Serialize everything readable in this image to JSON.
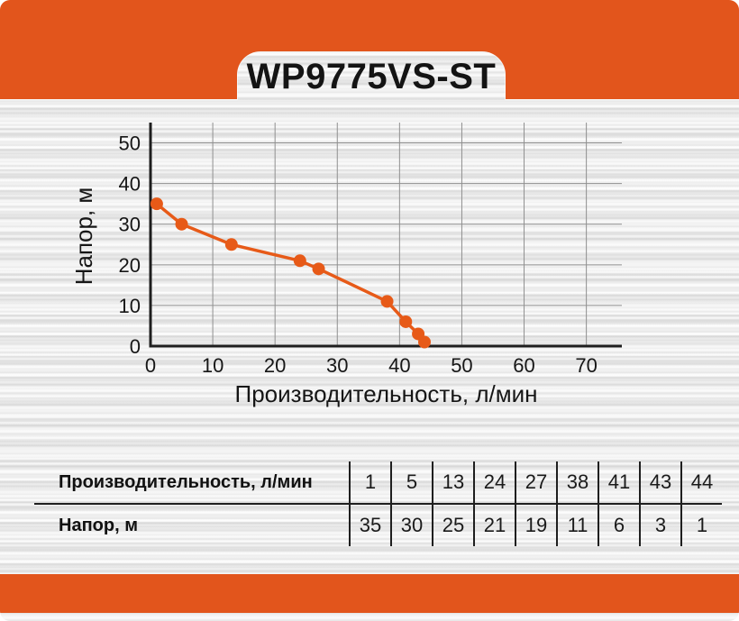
{
  "title": "WP9775VS-ST",
  "colors": {
    "accent_orange": "#E2551C",
    "curve_orange": "#E75A18",
    "axis_dark": "#1E1E1E",
    "grid_gray": "#8F8F8F",
    "text_dark": "#161616"
  },
  "chart_data": {
    "type": "line",
    "title": "",
    "xlabel": "Производительность, л/мин",
    "ylabel": "Напор, м",
    "series": [
      {
        "name": "pump-curve",
        "x": [
          1,
          5,
          13,
          24,
          27,
          38,
          41,
          43,
          44
        ],
        "y": [
          35,
          30,
          25,
          21,
          19,
          11,
          6,
          3,
          1
        ]
      }
    ],
    "xlim": [
      0,
      75.7
    ],
    "ylim": [
      0,
      55
    ],
    "xticks": [
      0,
      10,
      20,
      30,
      40,
      50,
      60,
      70
    ],
    "yticks": [
      0,
      10,
      20,
      30,
      40,
      50
    ],
    "grid": true,
    "legend": false
  },
  "table": {
    "rows": [
      {
        "label": "Производительность, л/мин",
        "values": [
          1,
          5,
          13,
          24,
          27,
          38,
          41,
          43,
          44
        ]
      },
      {
        "label": "Напор, м",
        "values": [
          35,
          30,
          25,
          21,
          19,
          11,
          6,
          3,
          1
        ]
      }
    ]
  }
}
